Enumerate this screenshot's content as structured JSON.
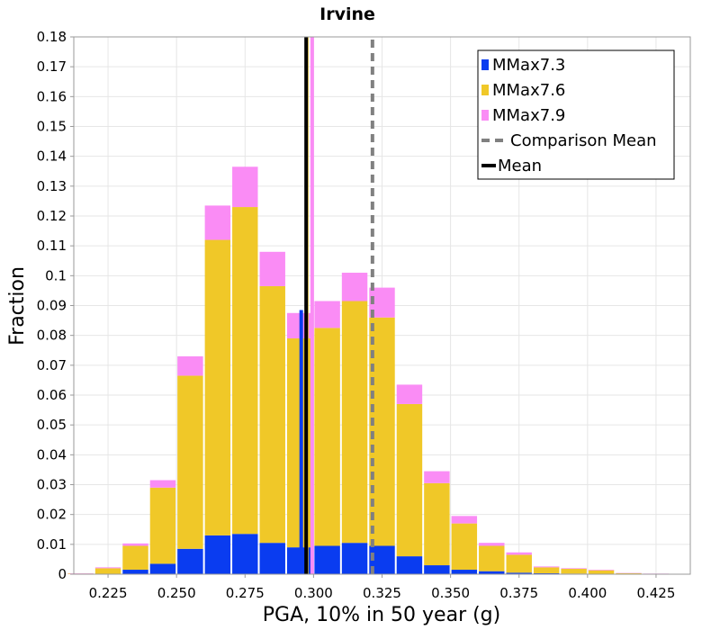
{
  "chart_data": {
    "type": "bar",
    "stacked": true,
    "title": "Irvine",
    "xlabel": "PGA, 10% in 50 year (g)",
    "ylabel": "Fraction",
    "xlim": [
      0.2125,
      0.4375
    ],
    "ylim": [
      0,
      0.18
    ],
    "bin_width": 0.01,
    "x": [
      0.215,
      0.225,
      0.235,
      0.245,
      0.255,
      0.265,
      0.275,
      0.285,
      0.295,
      0.305,
      0.315,
      0.325,
      0.335,
      0.345,
      0.355,
      0.365,
      0.375,
      0.385,
      0.395,
      0.405,
      0.415,
      0.425
    ],
    "x_ticks": [
      "0.225",
      "0.250",
      "0.275",
      "0.300",
      "0.325",
      "0.350",
      "0.375",
      "0.400",
      "0.425"
    ],
    "x_tick_values": [
      0.225,
      0.25,
      0.275,
      0.3,
      0.325,
      0.35,
      0.375,
      0.4,
      0.425
    ],
    "y_ticks": [
      "0",
      "0.01",
      "0.02",
      "0.03",
      "0.04",
      "0.05",
      "0.06",
      "0.07",
      "0.08",
      "0.09",
      "0.1",
      "0.11",
      "0.12",
      "0.13",
      "0.14",
      "0.15",
      "0.16",
      "0.17",
      "0.18"
    ],
    "y_tick_values": [
      0,
      0.01,
      0.02,
      0.03,
      0.04,
      0.05,
      0.06,
      0.07,
      0.08,
      0.09,
      0.1,
      0.11,
      0.12,
      0.13,
      0.14,
      0.15,
      0.16,
      0.17,
      0.18
    ],
    "series": [
      {
        "name": "MMax7.3",
        "color": "#0a3cf0",
        "values": [
          0,
          0,
          0.0015,
          0.0035,
          0.0085,
          0.013,
          0.0135,
          0.0105,
          0.009,
          0.0095,
          0.0105,
          0.0095,
          0.006,
          0.003,
          0.0015,
          0.001,
          0.0005,
          0.0003,
          0.0002,
          0.0001,
          0,
          0
        ]
      },
      {
        "name": "MMax7.6",
        "color": "#f0c828",
        "values": [
          0.0002,
          0.002,
          0.008,
          0.0255,
          0.058,
          0.099,
          0.1095,
          0.086,
          0.07,
          0.073,
          0.081,
          0.0765,
          0.051,
          0.0275,
          0.0155,
          0.0085,
          0.006,
          0.002,
          0.0016,
          0.0012,
          0.0003,
          0.0001
        ]
      },
      {
        "name": "MMax7.9",
        "color": "#fa8cf5",
        "values": [
          0.0001,
          0.0003,
          0.0008,
          0.0025,
          0.0065,
          0.0115,
          0.0135,
          0.0115,
          0.0085,
          0.009,
          0.0095,
          0.01,
          0.0065,
          0.004,
          0.0025,
          0.001,
          0.0008,
          0.0003,
          0.0002,
          0.0002,
          0.0001,
          0.0001
        ]
      }
    ],
    "mean_lines": [
      {
        "series": "MMax7.3",
        "x": 0.2955,
        "color": "#0a3cf0",
        "top": 0.0885
      },
      {
        "series": "MMax7.6",
        "x": 0.2975,
        "color": "#f0c828",
        "top": 0.18
      },
      {
        "series": "MMax7.9",
        "x": 0.2995,
        "color": "#fa8cf5",
        "top": 0.18
      },
      {
        "series": "Mean",
        "x": 0.2973,
        "color": "#000000",
        "top": 0.18
      }
    ],
    "comparison_mean": 0.3215,
    "legend": {
      "position": "top-right",
      "entries": [
        {
          "label": "MMax7.3",
          "kind": "box",
          "color": "#0a3cf0"
        },
        {
          "label": "MMax7.6",
          "kind": "box",
          "color": "#f0c828"
        },
        {
          "label": "MMax7.9",
          "kind": "box",
          "color": "#fa8cf5"
        },
        {
          "label": "Comparison Mean",
          "kind": "dashed",
          "color": "#808080"
        },
        {
          "label": "Mean",
          "kind": "line",
          "color": "#000000"
        }
      ]
    },
    "grid": true
  }
}
